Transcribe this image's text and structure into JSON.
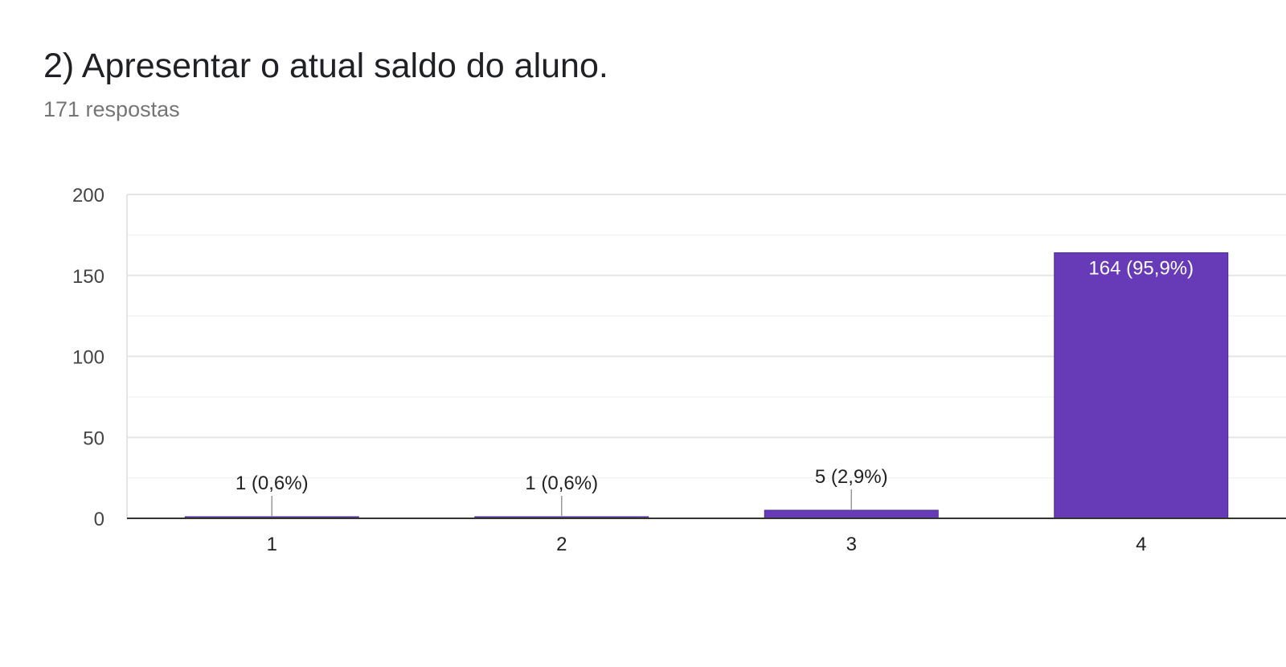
{
  "header": {
    "title": "2) Apresentar o atual saldo do aluno.",
    "subtitle": "171 respostas"
  },
  "colors": {
    "bar": "#673ab7",
    "bar_stroke": "#4a2a8a",
    "grid_major": "#e5e5e5",
    "grid_minor": "#f3f3f3",
    "axis": "#333333",
    "label_dark": "#222222",
    "label_light": "#ffffff",
    "leader": "#999999"
  },
  "chart_data": {
    "type": "bar",
    "categories": [
      "1",
      "2",
      "3",
      "4"
    ],
    "values": [
      1,
      1,
      5,
      164
    ],
    "data_labels": [
      "1 (0,6%)",
      "1 (0,6%)",
      "5 (2,9%)",
      "164 (95,9%)"
    ],
    "ylim": [
      0,
      200
    ],
    "yticks": [
      0,
      50,
      100,
      150,
      200
    ],
    "ytick_labels": [
      "0",
      "50",
      "100",
      "150",
      "200"
    ],
    "grid": true,
    "legend": "none"
  }
}
